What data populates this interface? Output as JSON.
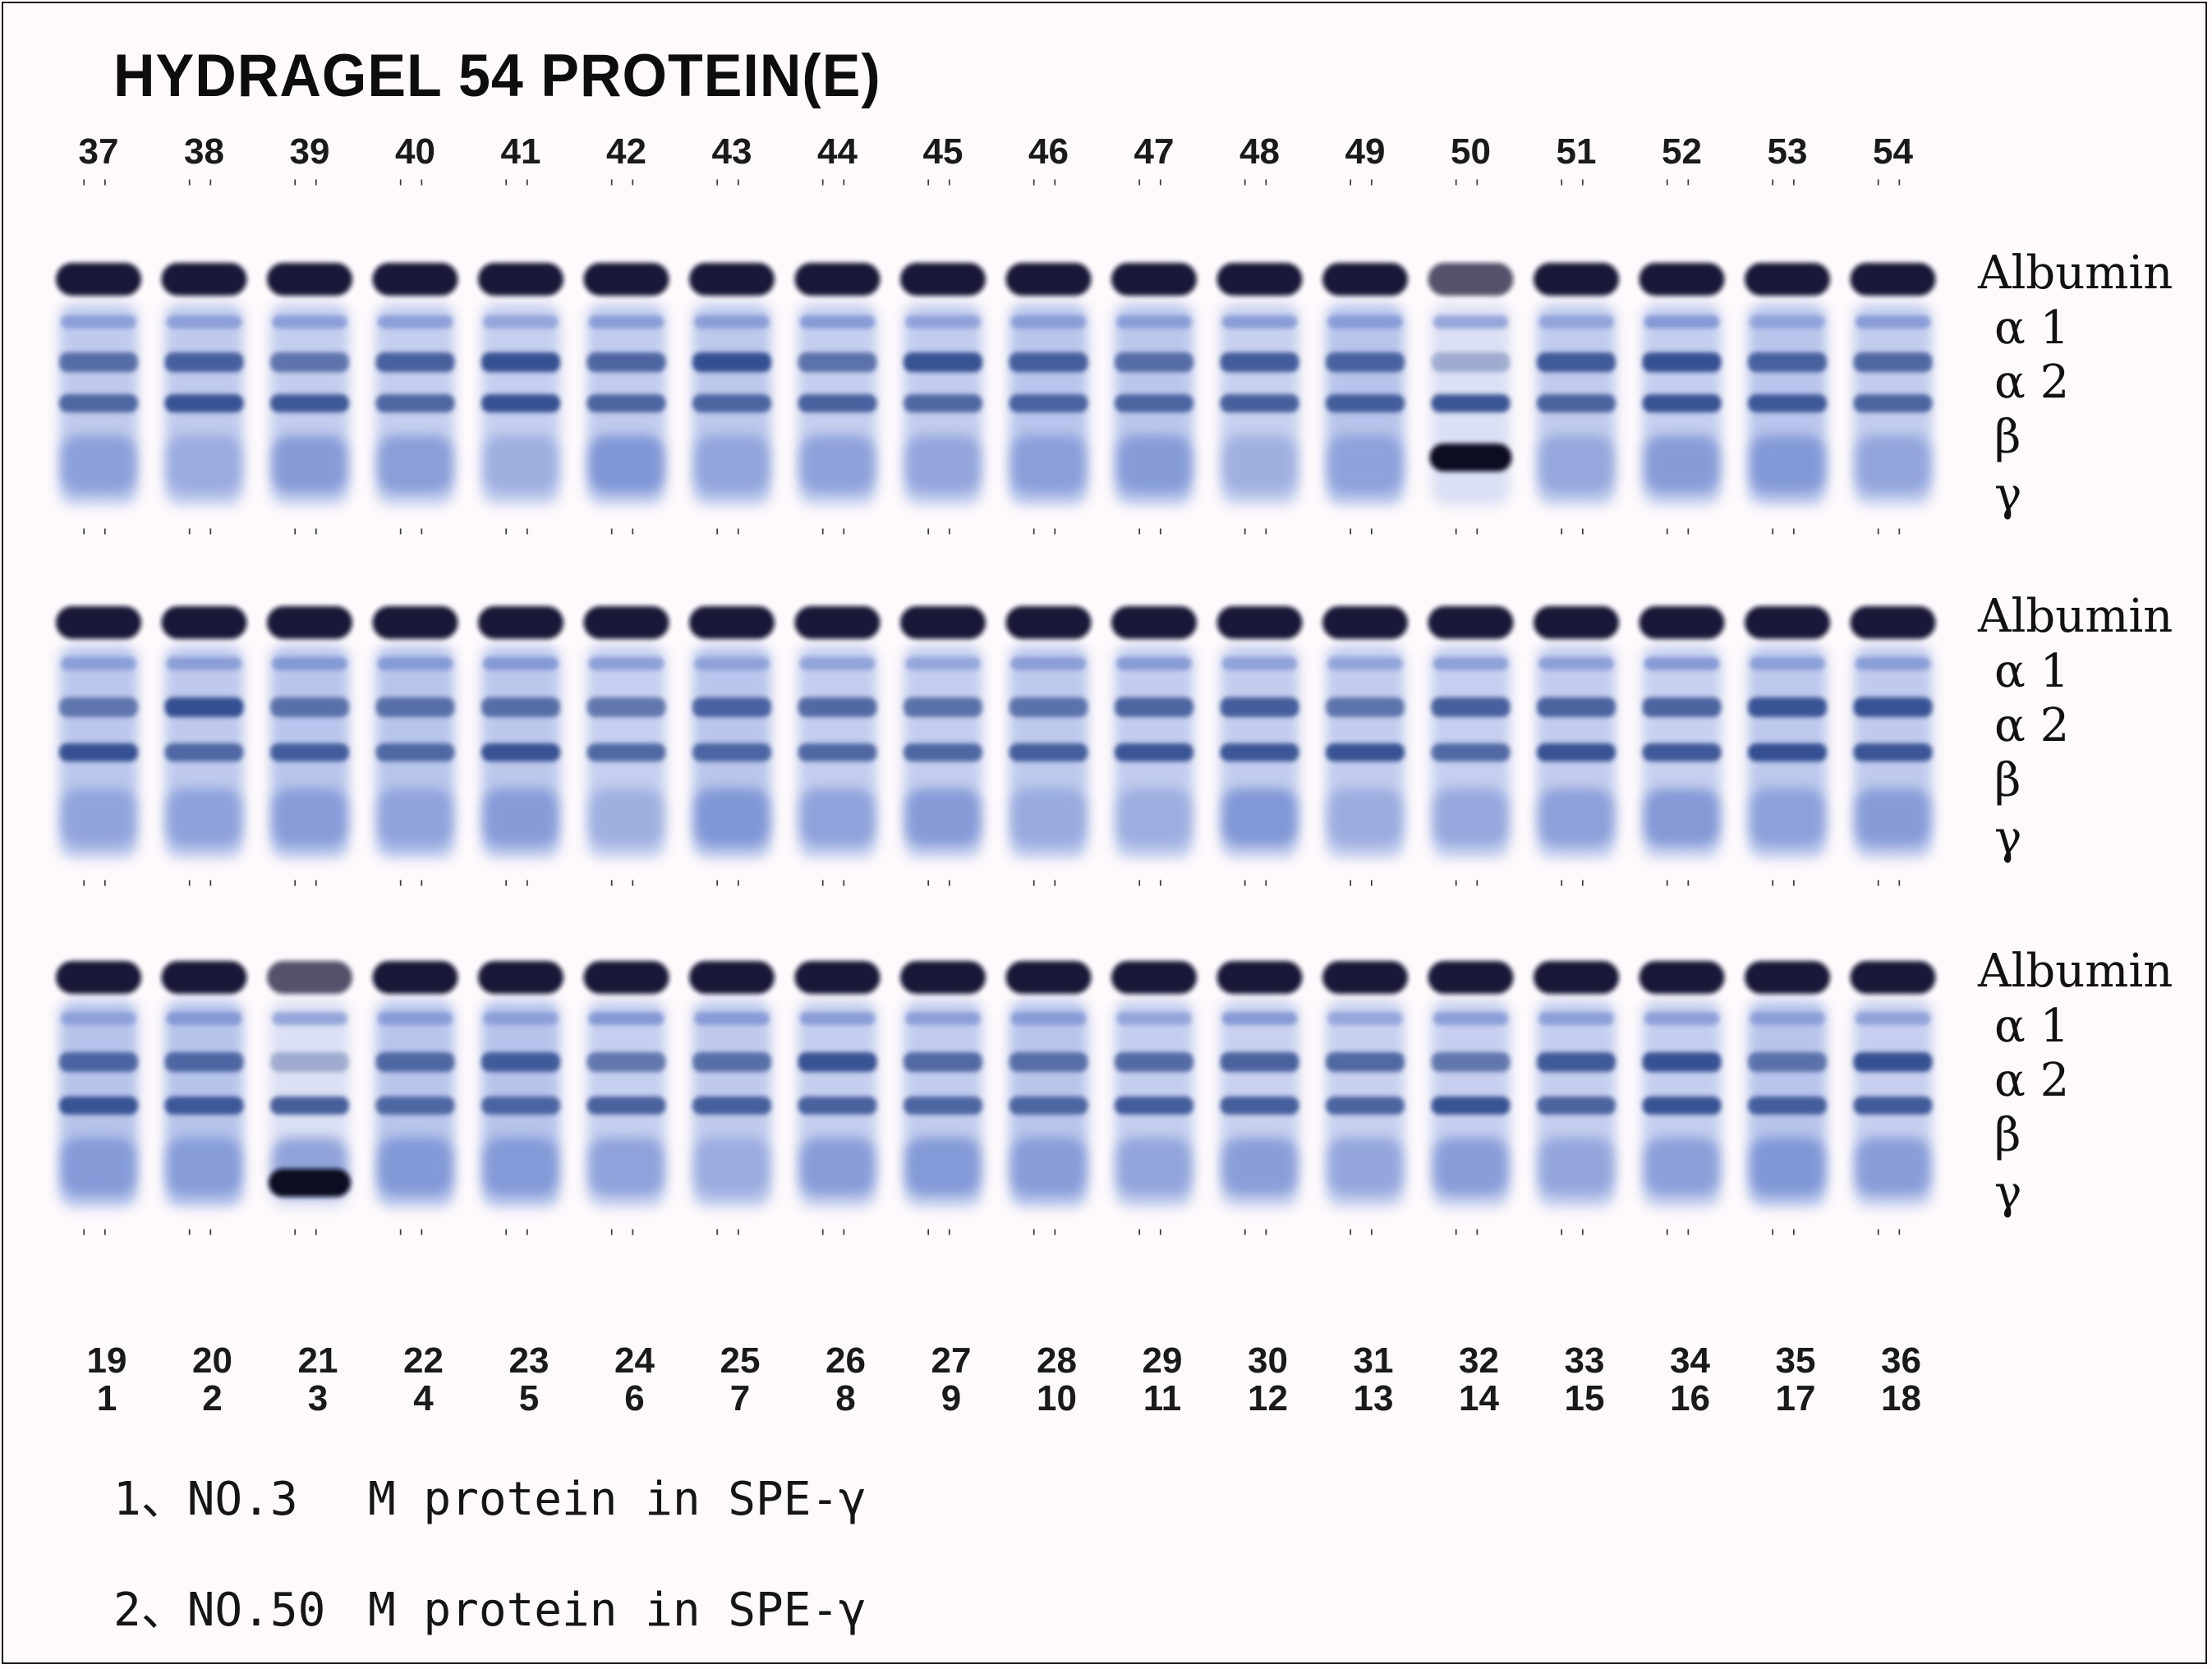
{
  "title": "HYDRAGEL 54 PROTEIN(E)",
  "rows": [
    {
      "lanes": [
        "37",
        "38",
        "39",
        "40",
        "41",
        "42",
        "43",
        "44",
        "45",
        "46",
        "47",
        "48",
        "49",
        "50",
        "51",
        "52",
        "53",
        "54"
      ],
      "fractions": [
        "Albumin",
        "α 1",
        "α 2",
        "β",
        "γ"
      ],
      "m_protein_lane": "50"
    },
    {
      "lanes": [],
      "fractions": [
        "Albumin",
        "α 1",
        "α 2",
        "β",
        "γ"
      ],
      "m_protein_lane": null
    },
    {
      "lanes": [
        "19",
        "20",
        "21",
        "22",
        "23",
        "24",
        "25",
        "26",
        "27",
        "28",
        "29",
        "30",
        "31",
        "32",
        "33",
        "34",
        "35",
        "36"
      ],
      "lanes_secondary": [
        "1",
        "2",
        "3",
        "4",
        "5",
        "6",
        "7",
        "8",
        "9",
        "10",
        "11",
        "12",
        "13",
        "14",
        "15",
        "16",
        "17",
        "18"
      ],
      "fractions": [
        "Albumin",
        "α 1",
        "α 2",
        "β",
        "γ"
      ],
      "m_protein_lane": "3"
    }
  ],
  "notes": [
    {
      "number": "1、NO.3",
      "text": "M protein in SPE-γ"
    },
    {
      "number": "2、NO.50",
      "text": "M protein in SPE-γ"
    }
  ],
  "colors": {
    "background": "#fdf9fc",
    "albumin_band": "#0b0c2e",
    "globulin_band": "#2e4a8c",
    "lane_haze": "#9fb2e6",
    "m_protein_band": "#0a0b24"
  }
}
